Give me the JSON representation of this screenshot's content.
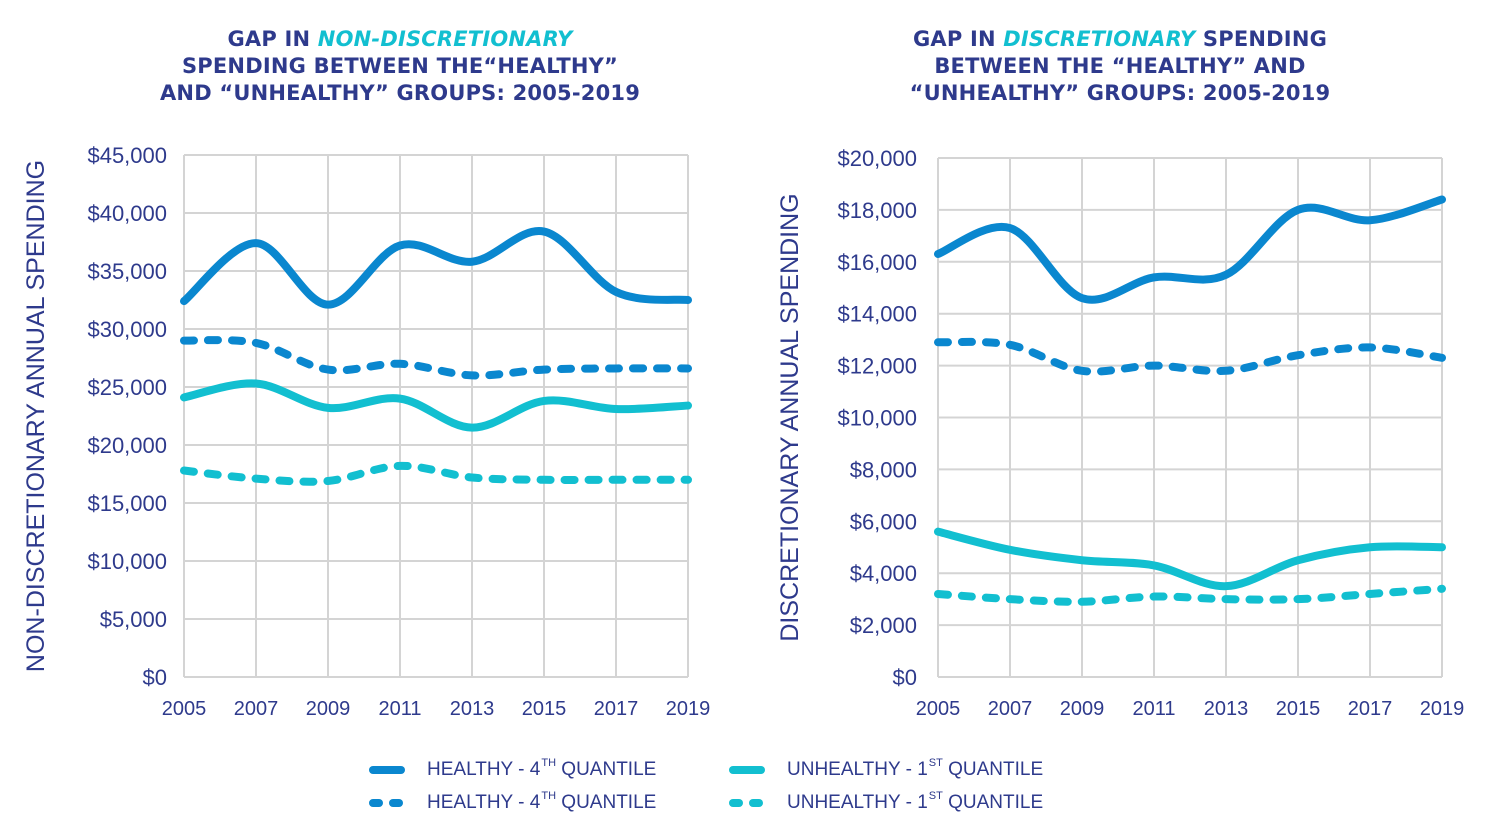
{
  "colors": {
    "healthy": "#0a87cf",
    "unhealthy": "#12bfd0",
    "text": "#2e3a8c",
    "grid": "#d4d4d4"
  },
  "legend": {
    "items": [
      {
        "prefix": "HEALTHY - 4",
        "sup": "TH",
        "suffix": " QUANTILE",
        "style": "solid",
        "color": "healthy"
      },
      {
        "prefix": "UNHEALTHY - 1",
        "sup": "ST",
        "suffix": " QUANTILE",
        "style": "solid",
        "color": "unhealthy"
      },
      {
        "prefix": "HEALTHY - 4",
        "sup": "TH",
        "suffix": " QUANTILE",
        "style": "dashed",
        "color": "healthy"
      },
      {
        "prefix": "UNHEALTHY - 1",
        "sup": "ST",
        "suffix": " QUANTILE",
        "style": "dashed",
        "color": "unhealthy"
      }
    ]
  },
  "chart_data": [
    {
      "type": "line",
      "title_parts": {
        "pre": "GAP IN ",
        "highlight": "NON-DISCRETIONARY",
        "post_line2": "SPENDING BETWEEN THE“HEALTHY”",
        "line3": "AND “UNHEALTHY” GROUPS: 2005-2019"
      },
      "title": "GAP IN NON-DISCRETIONARY SPENDING BETWEEN THE“HEALTHY” AND “UNHEALTHY” GROUPS: 2005-2019",
      "xlabel": "",
      "ylabel": "NON-DISCRETIONARY ANNUAL SPENDING",
      "x": [
        2005,
        2007,
        2009,
        2011,
        2013,
        2015,
        2017,
        2019
      ],
      "x_tick_labels": [
        "2005",
        "2007",
        "2009",
        "2011",
        "2013",
        "2015",
        "2017",
        "2019"
      ],
      "ylim": [
        0,
        45000
      ],
      "y_ticks": [
        0,
        5000,
        10000,
        15000,
        20000,
        25000,
        30000,
        35000,
        40000,
        45000
      ],
      "y_tick_labels": [
        "$0",
        "$5,000",
        "$10,000",
        "$15,000",
        "$20,000",
        "$25,000",
        "$30,000",
        "$35,000",
        "$40,000",
        "$45,000"
      ],
      "grid": true,
      "legend_position": "bottom",
      "series": [
        {
          "name": "HEALTHY - 4TH QUANTILE",
          "style": "solid",
          "color": "healthy",
          "values": [
            32400,
            37400,
            32100,
            37200,
            35800,
            38400,
            33200,
            32500
          ]
        },
        {
          "name": "HEALTHY - 4TH QUANTILE",
          "style": "dashed",
          "color": "healthy",
          "values": [
            29000,
            28800,
            26500,
            27000,
            26000,
            26500,
            26600,
            26600
          ]
        },
        {
          "name": "UNHEALTHY - 1ST QUANTILE",
          "style": "solid",
          "color": "unhealthy",
          "values": [
            24100,
            25300,
            23200,
            24000,
            21500,
            23800,
            23100,
            23400
          ]
        },
        {
          "name": "UNHEALTHY - 1ST QUANTILE",
          "style": "dashed",
          "color": "unhealthy",
          "values": [
            17800,
            17100,
            16900,
            18200,
            17200,
            17000,
            17000,
            17000
          ]
        }
      ]
    },
    {
      "type": "line",
      "title_parts": {
        "pre": "GAP IN ",
        "highlight": "DISCRETIONARY",
        "post": " SPENDING",
        "line2": "BETWEEN THE “HEALTHY” AND",
        "line3": "“UNHEALTHY” GROUPS: 2005-2019"
      },
      "title": "GAP IN DISCRETIONARY SPENDING BETWEEN THE “HEALTHY” AND “UNHEALTHY” GROUPS: 2005-2019",
      "xlabel": "",
      "ylabel": "DISCRETIONARY ANNUAL SPENDING",
      "x": [
        2005,
        2007,
        2009,
        2011,
        2013,
        2015,
        2017,
        2019
      ],
      "x_tick_labels": [
        "2005",
        "2007",
        "2009",
        "2011",
        "2013",
        "2015",
        "2017",
        "2019"
      ],
      "ylim": [
        0,
        20000
      ],
      "y_ticks": [
        0,
        2000,
        4000,
        6000,
        8000,
        10000,
        12000,
        14000,
        16000,
        18000,
        20000
      ],
      "y_tick_labels": [
        "$0",
        "$2,000",
        "$4,000",
        "$6,000",
        "$8,000",
        "$10,000",
        "$12,000",
        "$14,000",
        "$16,000",
        "$18,000",
        "$20,000"
      ],
      "grid": true,
      "legend_position": "bottom",
      "series": [
        {
          "name": "HEALTHY - 4TH QUANTILE",
          "style": "solid",
          "color": "healthy",
          "values": [
            16300,
            17300,
            14600,
            15400,
            15500,
            18000,
            17600,
            18400
          ]
        },
        {
          "name": "HEALTHY - 4TH QUANTILE",
          "style": "dashed",
          "color": "healthy",
          "values": [
            12900,
            12800,
            11800,
            12000,
            11800,
            12400,
            12700,
            12300
          ]
        },
        {
          "name": "UNHEALTHY - 1ST QUANTILE",
          "style": "solid",
          "color": "unhealthy",
          "values": [
            5600,
            4900,
            4500,
            4300,
            3500,
            4500,
            5000,
            5000
          ]
        },
        {
          "name": "UNHEALTHY - 1ST QUANTILE",
          "style": "dashed",
          "color": "unhealthy",
          "values": [
            3200,
            3000,
            2900,
            3100,
            3000,
            3000,
            3200,
            3400
          ]
        }
      ]
    }
  ]
}
